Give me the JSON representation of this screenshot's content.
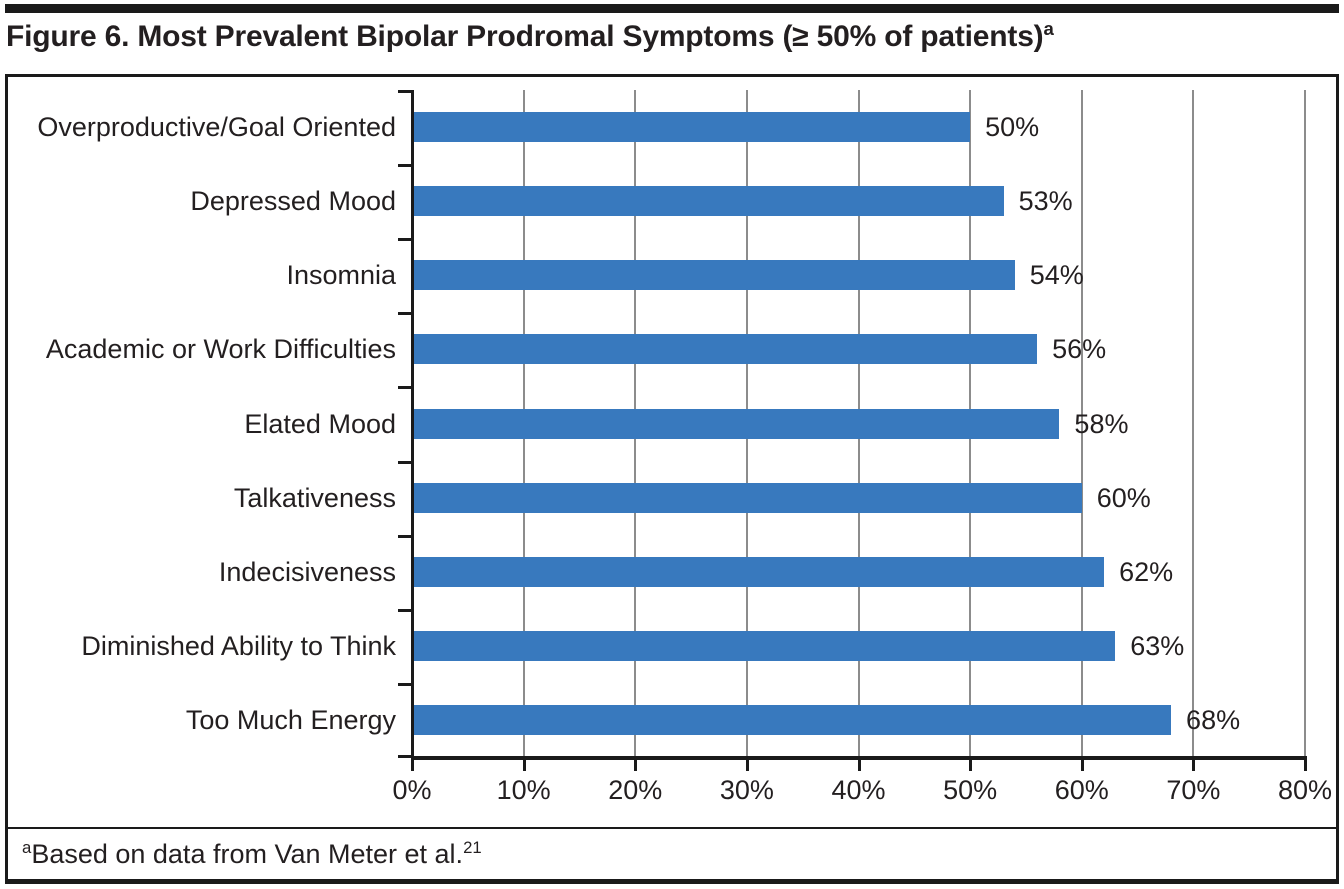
{
  "title": {
    "text": "Figure 6. Most Prevalent Bipolar Prodromal Symptoms (≥ 50% of patients)",
    "superscript": "a"
  },
  "chart_data": {
    "type": "bar",
    "orientation": "horizontal",
    "categories": [
      "Overproductive/Goal Oriented",
      "Depressed Mood",
      "Insomnia",
      "Academic or Work Difficulties",
      "Elated Mood",
      "Talkativeness",
      "Indecisiveness",
      "Diminished Ability to Think",
      "Too Much Energy"
    ],
    "values": [
      50,
      53,
      54,
      56,
      58,
      60,
      62,
      63,
      68
    ],
    "value_labels": [
      "50%",
      "53%",
      "54%",
      "56%",
      "58%",
      "60%",
      "62%",
      "63%",
      "68%"
    ],
    "xlim": [
      0,
      80
    ],
    "x_ticks": [
      0,
      10,
      20,
      30,
      40,
      50,
      60,
      70,
      80
    ],
    "x_tick_labels": [
      "0%",
      "10%",
      "20%",
      "30%",
      "40%",
      "50%",
      "60%",
      "70%",
      "80%"
    ],
    "xlabel": "",
    "ylabel": "",
    "grid": "vertical-only",
    "legend": "none",
    "bar_color": "#3879BE",
    "gridline_color": "#8C8C8C",
    "axis_color": "#1A1A1A",
    "text_color": "#231F20"
  },
  "footnote": {
    "superscript": "a",
    "text": "Based on data from Van Meter et al.",
    "reference": "21"
  },
  "colors": {
    "rule_black": "#1A1A1A",
    "background": "#FFFFFF"
  }
}
